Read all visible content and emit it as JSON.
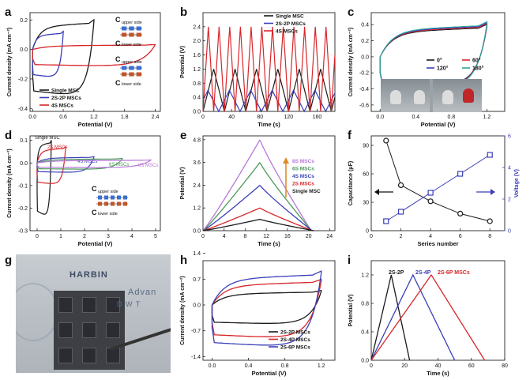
{
  "chart_data": [
    {
      "panel": "a",
      "type": "line",
      "xlabel": "Potential (V)",
      "ylabel": "Current density (mA cm⁻²)",
      "xlim": [
        -0.05,
        2.5
      ],
      "ylim": [
        -0.42,
        0.25
      ],
      "xticks": [
        0.0,
        0.6,
        1.2,
        1.8,
        2.4
      ],
      "yticks": [
        -0.4,
        -0.2,
        0.0,
        0.2
      ],
      "legend": "bottom-left",
      "series": [
        {
          "name": "Single MSC",
          "color": "#1a1a1a",
          "kind": "cv",
          "vmax": 1.2,
          "top": 0.18,
          "bottom": -0.33
        },
        {
          "name": "2S-2P MSCs",
          "color": "#3b3fb8",
          "kind": "cv",
          "vmax": 0.6,
          "top": 0.11,
          "bottom": -0.2
        },
        {
          "name": "4S MSCs",
          "color": "#d8262a",
          "kind": "cv",
          "vmax": 2.4,
          "top": 0.03,
          "bottom": -0.12
        }
      ],
      "insets": [
        {
          "top_label": "upper side",
          "bottom_label": "lower side"
        },
        {
          "top_label": "upper side",
          "bottom_label": "lower side"
        }
      ]
    },
    {
      "panel": "b",
      "type": "line",
      "xlabel": "Time (s)",
      "ylabel": "Potential (V)",
      "xlim": [
        0,
        185
      ],
      "ylim": [
        0,
        2.8
      ],
      "xticks": [
        0,
        40,
        80,
        120,
        160
      ],
      "yticks": [
        0.0,
        0.4,
        0.8,
        1.2,
        1.6,
        2.0,
        2.4
      ],
      "legend": "top-right",
      "series": [
        {
          "name": "Single MSC",
          "color": "#1a1a1a",
          "peak": 1.2,
          "period": 30,
          "phase": 0
        },
        {
          "name": "2S-2P MSCs",
          "color": "#3b3fb8",
          "peak": 0.6,
          "period": 30,
          "phase": 8
        },
        {
          "name": "4S MSCs",
          "color": "#d8262a",
          "peak": 2.4,
          "period": 15,
          "phase": 0
        }
      ]
    },
    {
      "panel": "c",
      "type": "line",
      "xlabel": "Potential (V)",
      "ylabel": "Current density (mA cm⁻²)",
      "xlim": [
        -0.1,
        1.4
      ],
      "ylim": [
        -0.68,
        0.55
      ],
      "xticks": [
        0.0,
        0.4,
        0.8,
        1.2
      ],
      "yticks": [
        -0.6,
        -0.4,
        -0.2,
        0.0,
        0.2,
        0.4
      ],
      "legend": "middle-right",
      "series": [
        {
          "name": "0°",
          "color": "#1a1a1a"
        },
        {
          "name": "60°",
          "color": "#d8262a"
        },
        {
          "name": "120°",
          "color": "#3b3fb8"
        },
        {
          "name": "180°",
          "color": "#2aa39a"
        }
      ]
    },
    {
      "panel": "d",
      "type": "line",
      "xlabel": "Potential (V)",
      "ylabel": "Current density (mA cm⁻²)",
      "xlim": [
        -0.3,
        5.2
      ],
      "ylim": [
        -0.3,
        0.12
      ],
      "xticks": [
        0,
        1,
        2,
        3,
        4,
        5
      ],
      "yticks": [
        -0.3,
        -0.2,
        -0.1,
        0.0,
        0.1
      ],
      "series": [
        {
          "name": "Single MSC",
          "color": "#1a1a1a",
          "vmax": 0.6,
          "top": 0.09,
          "bottom": -0.25
        },
        {
          "name": "2S MSCs",
          "color": "#d8262a",
          "vmax": 1.2,
          "top": 0.065,
          "bottom": -0.1
        },
        {
          "name": "4S MSCs",
          "color": "#3b3fb8",
          "vmax": 2.4,
          "top": 0.025,
          "bottom": -0.045
        },
        {
          "name": "6S MSCs",
          "color": "#4c9a5a",
          "vmax": 3.6,
          "top": 0.018,
          "bottom": -0.03
        },
        {
          "name": "8S MSCs",
          "color": "#b777d8",
          "vmax": 4.8,
          "top": 0.012,
          "bottom": -0.022
        }
      ],
      "inset": {
        "top_label": "upper side",
        "bottom_label": "lower side"
      }
    },
    {
      "panel": "e",
      "type": "line",
      "xlabel": "Time (s)",
      "ylabel": "Potential (V)",
      "xlim": [
        0,
        25
      ],
      "ylim": [
        0,
        5.0
      ],
      "xticks": [
        0,
        4,
        8,
        12,
        16,
        20,
        24
      ],
      "yticks": [
        0.0,
        1.2,
        2.4,
        3.6,
        4.8
      ],
      "legend": "middle-right",
      "series": [
        {
          "name": "8S MSCs",
          "color": "#b777d8",
          "peak": 4.8,
          "tpeak": 10.8,
          "tend": 20.5
        },
        {
          "name": "6S MSCs",
          "color": "#4c9a5a",
          "peak": 3.6,
          "tpeak": 10.8,
          "tend": 20.6
        },
        {
          "name": "4S MSCs",
          "color": "#3b3fb8",
          "peak": 2.4,
          "tpeak": 10.8,
          "tend": 20.7
        },
        {
          "name": "2S MSCs",
          "color": "#d8262a",
          "peak": 1.2,
          "tpeak": 10.8,
          "tend": 20.8
        },
        {
          "name": "Single MSC",
          "color": "#1a1a1a",
          "peak": 0.6,
          "tpeak": 10.8,
          "tend": 21.0
        }
      ]
    },
    {
      "panel": "f",
      "type": "scatter",
      "xlabel": "Series number",
      "ylabel": "Capacitance (μF)",
      "ylabel2": "Voltage (V)",
      "xlim": [
        0,
        9
      ],
      "ylim": [
        0,
        100
      ],
      "ylim2": [
        0,
        6
      ],
      "xticks": [
        0,
        2,
        4,
        6,
        8
      ],
      "yticks": [
        0,
        30,
        60,
        90
      ],
      "yticks2": [
        0,
        2,
        4,
        6
      ],
      "x": [
        1,
        2,
        4,
        6,
        8
      ],
      "series": [
        {
          "name": "Capacitance",
          "color": "#1a1a1a",
          "values": [
            95,
            48,
            31,
            18,
            10
          ]
        },
        {
          "name": "Voltage",
          "color": "#3b3fb8",
          "values": [
            0.6,
            1.2,
            2.4,
            3.6,
            4.8
          ]
        }
      ]
    },
    {
      "panel": "h",
      "type": "line",
      "xlabel": "Potential (V)",
      "ylabel": "Current density (mA cm⁻²)",
      "xlim": [
        -0.1,
        1.35
      ],
      "ylim": [
        -1.5,
        1.2
      ],
      "xticks": [
        0.0,
        0.4,
        0.8,
        1.2
      ],
      "yticks": [
        -1.4,
        -0.7,
        0.0,
        0.7,
        1.4
      ],
      "legend": "bottom-right",
      "series": [
        {
          "name": "2S-2P MSCs",
          "color": "#1a1a1a",
          "top": 0.35,
          "bottom": -0.55
        },
        {
          "name": "2S-4P MSCs",
          "color": "#d8262a",
          "top": 0.62,
          "bottom": -0.95
        },
        {
          "name": "2S-6P MSCs",
          "color": "#3b3fb8",
          "top": 0.82,
          "bottom": -1.2
        }
      ]
    },
    {
      "panel": "i",
      "type": "line",
      "xlabel": "Time (s)",
      "ylabel": "Potential (V)",
      "xlim": [
        0,
        80
      ],
      "ylim": [
        0,
        1.4
      ],
      "xticks": [
        0,
        20,
        40,
        60,
        80
      ],
      "yticks": [
        0.0,
        0.4,
        0.8,
        1.2
      ],
      "series": [
        {
          "name": "2S-2P",
          "color": "#1a1a1a",
          "peak": 1.2,
          "tpeak": 12,
          "tend": 23
        },
        {
          "name": "2S-4P",
          "color": "#3b3fb8",
          "peak": 1.2,
          "tpeak": 25,
          "tend": 50
        },
        {
          "name": "2S-6P MSCs",
          "color": "#d8262a",
          "peak": 1.2,
          "tpeak": 36,
          "tend": 68
        }
      ]
    }
  ],
  "panel_letters": [
    "a",
    "b",
    "c",
    "d",
    "e",
    "f",
    "g",
    "h",
    "i"
  ],
  "photo_g": {
    "labels": [
      "HARBIN",
      "Advan",
      "D  W  T"
    ],
    "top_label": "upper side",
    "bottom_label": "lower side"
  }
}
